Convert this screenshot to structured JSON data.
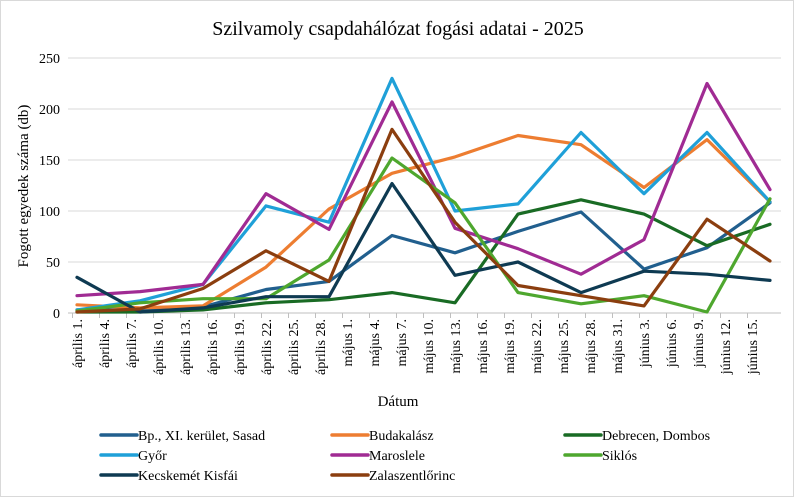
{
  "chart_data": {
    "type": "line",
    "title": "Szilvamoly csapdahálózat fogási adatai - 2025",
    "xlabel": "Dátum",
    "ylabel": "Fogott egyedek száma (db)",
    "ylim": [
      0,
      250
    ],
    "yticks": [
      0,
      50,
      100,
      150,
      200,
      250
    ],
    "grid": true,
    "legend_position": "bottom",
    "x_tick_labels": [
      "április 1.",
      "április 4.",
      "április 7.",
      "április 10.",
      "április 13.",
      "április 16.",
      "április 19.",
      "április 22.",
      "április 25.",
      "április 28.",
      "május 1.",
      "május 4.",
      "május 7.",
      "május 10.",
      "május 13.",
      "május 16.",
      "május 19.",
      "május 22.",
      "május 25.",
      "május 28.",
      "május 31.",
      "június 3.",
      "június 6.",
      "június 9.",
      "június 12.",
      "június 15."
    ],
    "x_range_days": [
      0,
      77
    ],
    "x_day_offsets": [
      0,
      7,
      14,
      21,
      28,
      35,
      42,
      49,
      56,
      63,
      70,
      77
    ],
    "x_dates": [
      "április 1.",
      "április 8.",
      "április 15.",
      "április 22.",
      "április 29.",
      "május 6.",
      "május 13.",
      "május 20.",
      "május 27.",
      "június 3.",
      "június 10.",
      "június 17."
    ],
    "series": [
      {
        "name": "Bp., XI. kerület, Sasad",
        "color": "#215F8E",
        "values": [
          3,
          3,
          6,
          23,
          31,
          76,
          59,
          80,
          99,
          43,
          64,
          108
        ]
      },
      {
        "name": "Budakalász",
        "color": "#ED7D31",
        "values": [
          8,
          5,
          7,
          45,
          102,
          137,
          153,
          174,
          165,
          123,
          170,
          109
        ]
      },
      {
        "name": "Debrecen, Dombos",
        "color": "#196B24",
        "values": [
          1,
          1,
          3,
          10,
          13,
          20,
          10,
          97,
          111,
          97,
          66,
          87
        ]
      },
      {
        "name": "Győr",
        "color": "#1FA0D8",
        "values": [
          3,
          12,
          28,
          105,
          89,
          230,
          100,
          107,
          177,
          117,
          177,
          109
        ]
      },
      {
        "name": "Maroslele",
        "color": "#A02B93",
        "values": [
          17,
          21,
          28,
          117,
          82,
          207,
          83,
          63,
          38,
          72,
          225,
          121
        ]
      },
      {
        "name": "Siklós",
        "color": "#4EA72E",
        "values": [
          2,
          10,
          14,
          14,
          52,
          152,
          108,
          20,
          9,
          17,
          1,
          112
        ]
      },
      {
        "name": "Kecskemét Kisfái",
        "color": "#0E3A52",
        "values": [
          35,
          1,
          5,
          16,
          16,
          127,
          37,
          50,
          20,
          41,
          38,
          32
        ]
      },
      {
        "name": "Zalaszentlőrinc",
        "color": "#8B3E0F",
        "values": [
          1,
          4,
          24,
          61,
          31,
          180,
          89,
          27,
          17,
          7,
          92,
          51
        ]
      }
    ]
  }
}
